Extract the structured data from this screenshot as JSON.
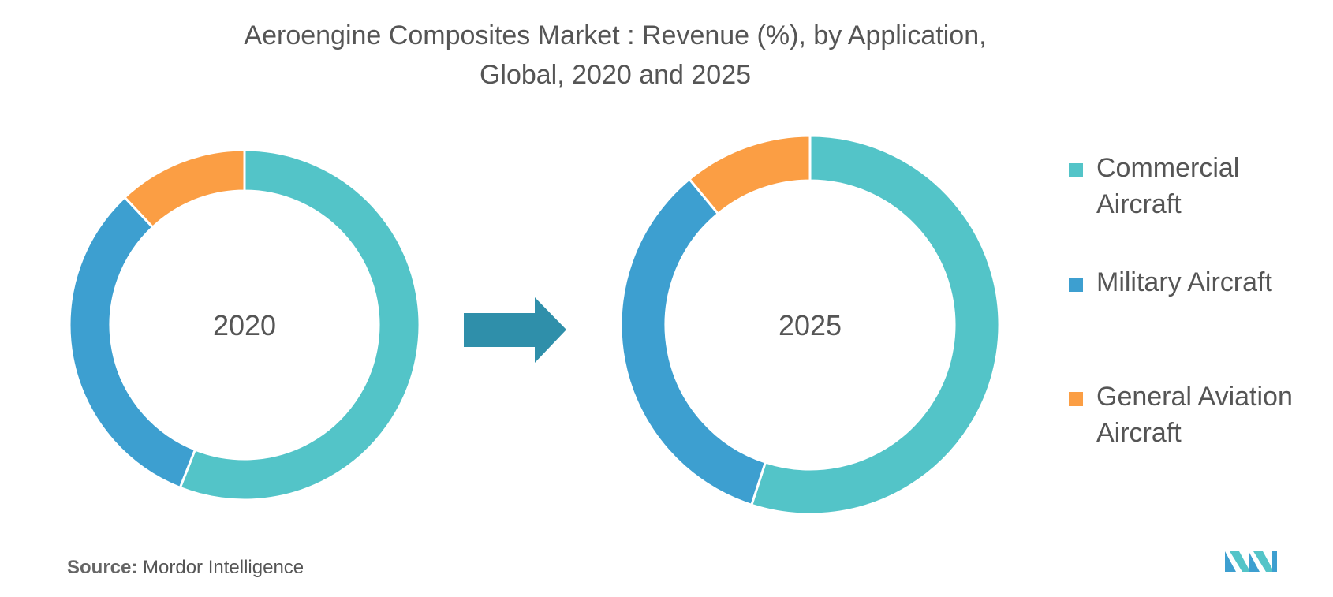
{
  "title_line1": "Aeroengine Composites Market : Revenue (%), by Application,",
  "title_line2": "Global, 2020 and 2025",
  "colors": {
    "commercial": "#53C4C8",
    "military": "#3D9FD0",
    "general": "#FB9E44",
    "arrow": "#2F8FAA",
    "text": "#555555"
  },
  "chart_data": {
    "type": "pie",
    "categories": [
      "Commercial Aircraft",
      "Military Aircraft",
      "General Aviation Aircraft"
    ],
    "charts": [
      {
        "label": "2020",
        "values": [
          56,
          32,
          12
        ]
      },
      {
        "label": "2025",
        "values": [
          55,
          34,
          11
        ]
      }
    ]
  },
  "legend": [
    {
      "label_line1": "Commercial",
      "label_line2": "Aircraft"
    },
    {
      "label_line1": "Military Aircraft",
      "label_line2": ""
    },
    {
      "label_line1": "General Aviation",
      "label_line2": "Aircraft"
    }
  ],
  "source": {
    "prefix": "Source:",
    "text": " Mordor Intelligence"
  }
}
